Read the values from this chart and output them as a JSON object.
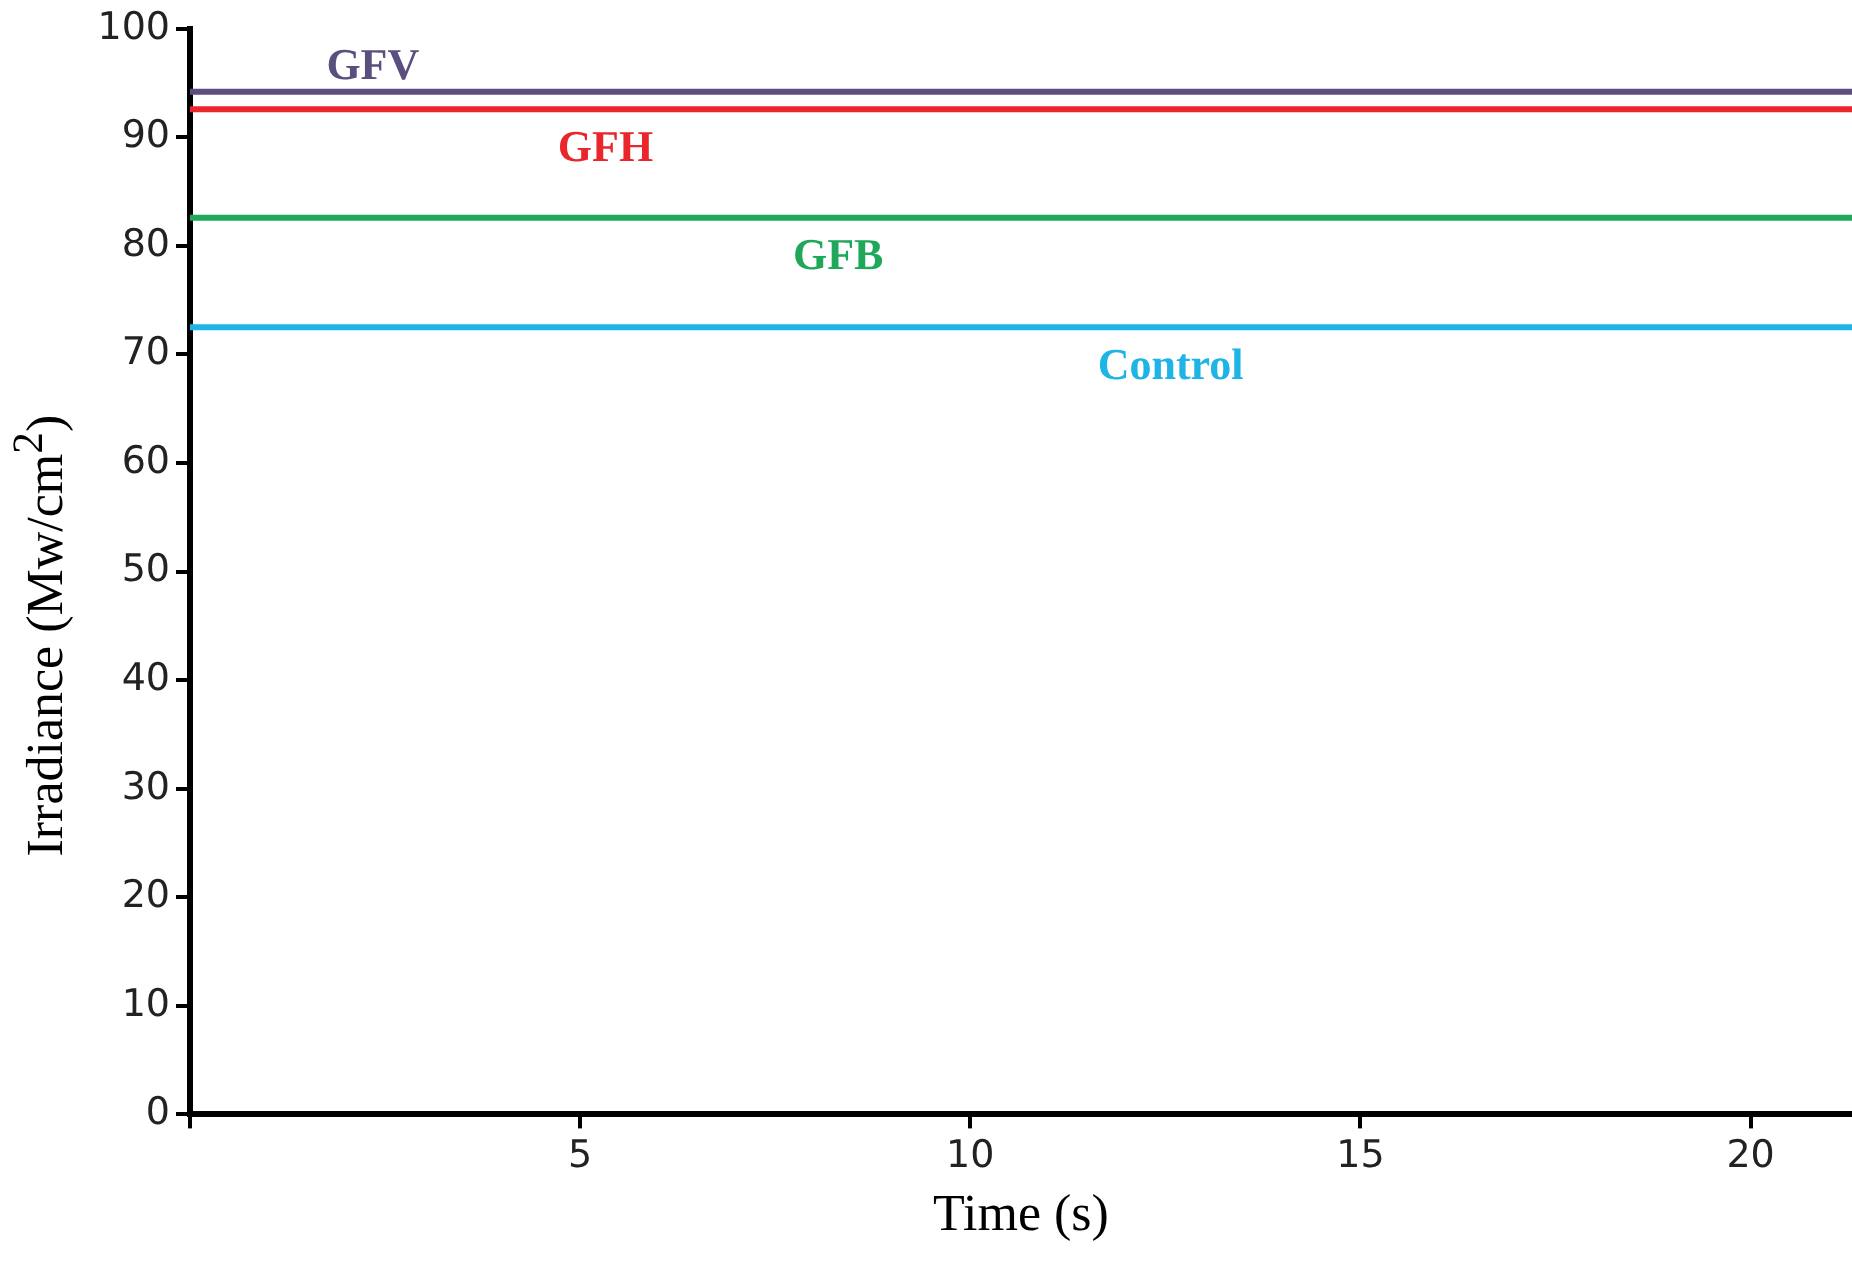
{
  "chart_data": {
    "type": "line",
    "xlabel": "Time (s)",
    "ylabel": "Irradiance (Mw/cm$^{2}$)",
    "x": [
      0,
      21.3
    ],
    "series": [
      {
        "name": "GFV",
        "color": "#5b4f7f",
        "values": [
          94.2,
          94.2
        ]
      },
      {
        "name": "GFH",
        "color": "#e8262b",
        "values": [
          92.6,
          92.6
        ]
      },
      {
        "name": "GFB",
        "color": "#1fa85a",
        "values": [
          82.6,
          82.6
        ]
      },
      {
        "name": "Control",
        "color": "#1eb4e6",
        "values": [
          72.5,
          72.5
        ]
      }
    ],
    "xlim": [
      0,
      21.3
    ],
    "xticks": [
      {
        "value": 0,
        "label": null
      },
      5,
      10,
      15,
      20
    ],
    "ylim": [
      0,
      100
    ],
    "yticks": [
      0,
      10,
      20,
      30,
      40,
      50,
      60,
      70,
      80,
      90,
      100
    ],
    "grid": false,
    "legend": false,
    "marker": "none",
    "line_style": "solid"
  }
}
